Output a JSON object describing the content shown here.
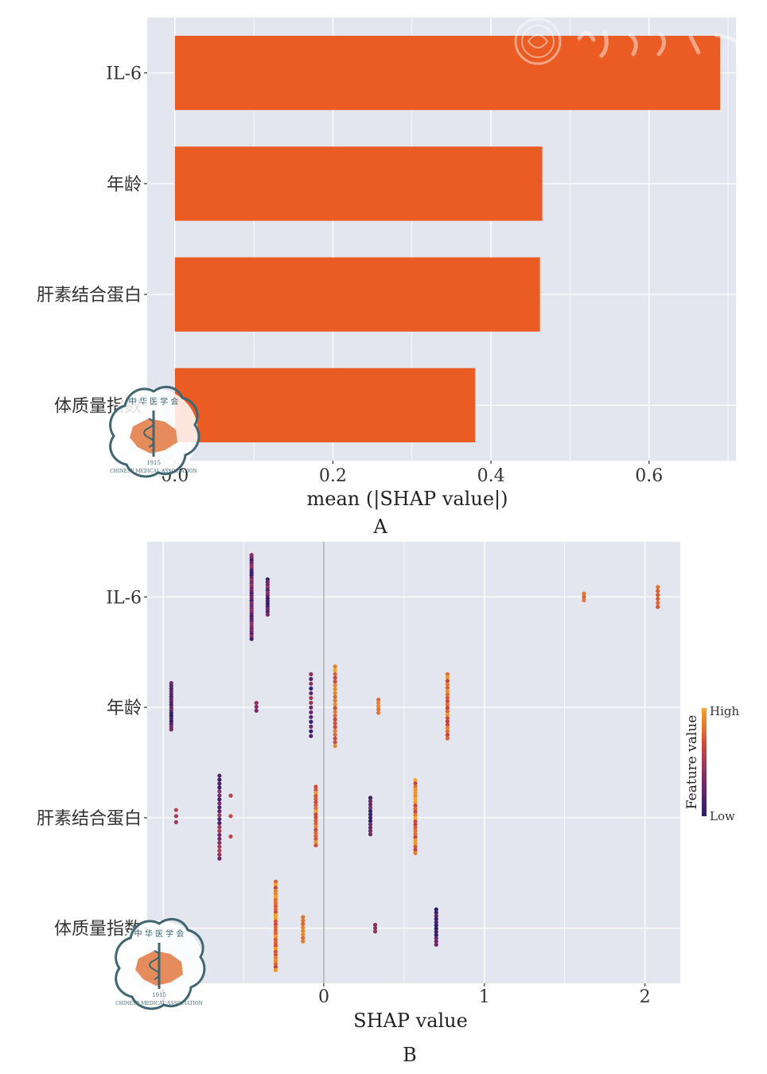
{
  "chart_data": [
    {
      "type": "bar",
      "orientation": "horizontal",
      "panel_label": "A",
      "categories": [
        "IL-6",
        "年龄",
        "肝素结合蛋白",
        "体质量指数"
      ],
      "values": [
        0.69,
        0.465,
        0.462,
        0.38
      ],
      "xlabel": "mean (|SHAP value|)",
      "ylabel": "",
      "xlim": [
        -0.035,
        0.71
      ],
      "xticks": [
        0.0,
        0.2,
        0.4,
        0.6
      ],
      "xtick_labels": [
        "0.0",
        "0.2",
        "0.4",
        "0.6"
      ],
      "bar_color": "#eb5b24",
      "background": "#e3e6ee",
      "grid": true
    },
    {
      "type": "scatter",
      "panel_label": "B",
      "categories": [
        "IL-6",
        "年龄",
        "肝素结合蛋白",
        "体质量指数"
      ],
      "xlabel": "SHAP value",
      "ylabel": "",
      "xlim": [
        -1.1,
        2.22
      ],
      "xticks": [
        0,
        1,
        2
      ],
      "xtick_labels": [
        "0",
        "1",
        "2"
      ],
      "partial_tick_label": "1",
      "zero_line": true,
      "background": "#e3e6ee",
      "grid": true,
      "colorbar": {
        "title": "Feature value",
        "high_label": "High",
        "low_label": "Low",
        "colors": [
          "#2a1d6b",
          "#7a2a6a",
          "#d04a3c",
          "#f5a623"
        ]
      },
      "clusters": [
        {
          "feature": "IL-6",
          "x": -0.45,
          "y_range": [
            -0.38,
            0.38
          ],
          "n": 34,
          "feature_values": [
            0.05,
            0.45
          ]
        },
        {
          "feature": "IL-6",
          "x": -0.35,
          "y_range": [
            -0.16,
            0.16
          ],
          "n": 14,
          "feature_values": [
            0.05,
            0.45
          ]
        },
        {
          "feature": "IL-6",
          "x": 1.62,
          "y_range": [
            -0.03,
            0.03
          ],
          "n": 3,
          "feature_values": [
            0.75,
            0.85
          ]
        },
        {
          "feature": "IL-6",
          "x": 2.08,
          "y_range": [
            -0.09,
            0.09
          ],
          "n": 6,
          "feature_values": [
            0.7,
            0.85
          ]
        },
        {
          "feature": "年龄",
          "x": -0.95,
          "y_range": [
            -0.22,
            0.2
          ],
          "n": 18,
          "feature_values": [
            0.0,
            0.35
          ]
        },
        {
          "feature": "年龄",
          "x": -0.42,
          "y_range": [
            -0.04,
            0.03
          ],
          "n": 3,
          "feature_values": [
            0.2,
            0.4
          ]
        },
        {
          "feature": "年龄",
          "x": -0.08,
          "y_range": [
            -0.3,
            0.26
          ],
          "n": 14,
          "feature_values": [
            0.0,
            0.5
          ]
        },
        {
          "feature": "年龄",
          "x": 0.07,
          "y_range": [
            -0.37,
            0.35
          ],
          "n": 22,
          "feature_values": [
            0.6,
            1.0
          ]
        },
        {
          "feature": "年龄",
          "x": 0.34,
          "y_range": [
            -0.07,
            0.05
          ],
          "n": 5,
          "feature_values": [
            0.65,
            0.95
          ]
        },
        {
          "feature": "年龄",
          "x": 0.77,
          "y_range": [
            -0.3,
            0.28
          ],
          "n": 20,
          "feature_values": [
            0.6,
            1.0
          ]
        },
        {
          "feature": "肝素结合蛋白",
          "x": -0.92,
          "y_range": [
            -0.07,
            0.04
          ],
          "n": 3,
          "feature_values": [
            0.45,
            0.6
          ]
        },
        {
          "feature": "肝素结合蛋白",
          "x": -0.65,
          "y_range": [
            -0.38,
            0.37
          ],
          "n": 22,
          "feature_values": [
            0.05,
            0.55
          ]
        },
        {
          "feature": "肝素结合蛋白",
          "x": -0.58,
          "y_range": [
            -0.2,
            0.17
          ],
          "n": 3,
          "feature_values": [
            0.55,
            0.65
          ]
        },
        {
          "feature": "肝素结合蛋白",
          "x": -0.05,
          "y_range": [
            -0.28,
            0.25
          ],
          "n": 20,
          "feature_values": [
            0.6,
            1.0
          ]
        },
        {
          "feature": "肝素结合蛋白",
          "x": 0.29,
          "y_range": [
            -0.18,
            0.15
          ],
          "n": 12,
          "feature_values": [
            0.0,
            0.35
          ]
        },
        {
          "feature": "肝素结合蛋白",
          "x": 0.57,
          "y_range": [
            -0.34,
            0.32
          ],
          "n": 24,
          "feature_values": [
            0.6,
            1.0
          ]
        },
        {
          "feature": "体质量指数",
          "x": -0.3,
          "y_range": [
            -0.42,
            0.38
          ],
          "n": 30,
          "feature_values": [
            0.6,
            1.0
          ]
        },
        {
          "feature": "体质量指数",
          "x": -0.13,
          "y_range": [
            -0.1,
            0.12
          ],
          "n": 8,
          "feature_values": [
            0.6,
            0.9
          ]
        },
        {
          "feature": "体质量指数",
          "x": 0.32,
          "y_range": [
            -0.03,
            0.03
          ],
          "n": 3,
          "feature_values": [
            0.2,
            0.5
          ]
        },
        {
          "feature": "体质量指数",
          "x": 0.7,
          "y_range": [
            -0.17,
            0.15
          ],
          "n": 12,
          "feature_values": [
            0.0,
            0.3
          ]
        }
      ]
    }
  ],
  "watermark": {
    "seal_text_top": "中 华 医 学 会",
    "seal_text_bottom": "CHINESE MEDICAL ASSOCIATION",
    "seal_year": "1915",
    "calligraphy_text": "中华医学会"
  }
}
